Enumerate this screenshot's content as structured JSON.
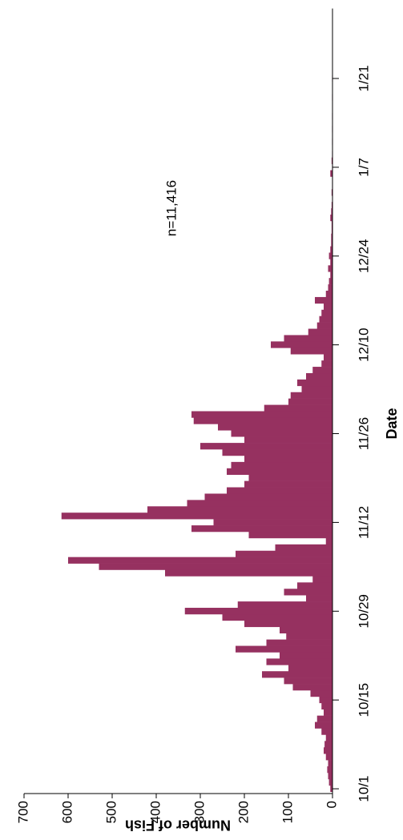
{
  "chart_data": {
    "type": "bar",
    "xlabel": "Date",
    "ylabel": "Number of Fish",
    "annotation": "n=11,416",
    "color": "#963160",
    "ylim": [
      0,
      700
    ],
    "yticks": [
      0,
      100,
      200,
      300,
      400,
      500,
      600,
      700
    ],
    "categories": [
      "10/1",
      null,
      null,
      null,
      null,
      null,
      null,
      null,
      null,
      null,
      null,
      null,
      null,
      null,
      "10/15",
      null,
      null,
      null,
      null,
      null,
      null,
      null,
      null,
      null,
      null,
      null,
      null,
      null,
      "10/29",
      null,
      null,
      null,
      null,
      null,
      null,
      null,
      null,
      null,
      null,
      null,
      null,
      null,
      "11/12",
      null,
      null,
      null,
      null,
      null,
      null,
      null,
      null,
      null,
      null,
      null,
      null,
      null,
      "11/26",
      null,
      null,
      null,
      null,
      null,
      null,
      null,
      null,
      null,
      null,
      null,
      null,
      null,
      "12/10",
      null,
      null,
      null,
      null,
      null,
      null,
      null,
      null,
      null,
      null,
      null,
      null,
      null,
      "12/24",
      null,
      null,
      null,
      null,
      null,
      null,
      null,
      null,
      null,
      null,
      null,
      null,
      null,
      "1/7",
      null,
      null,
      null,
      null,
      null,
      null,
      null,
      null,
      null,
      null,
      null,
      null,
      null,
      "1/21",
      null,
      null,
      null,
      null,
      null,
      null,
      null,
      null
    ],
    "values": [
      5,
      8,
      10,
      12,
      10,
      15,
      20,
      18,
      15,
      25,
      40,
      35,
      20,
      25,
      30,
      50,
      90,
      110,
      160,
      100,
      150,
      120,
      220,
      150,
      105,
      120,
      200,
      250,
      335,
      215,
      60,
      110,
      80,
      45,
      380,
      530,
      600,
      220,
      130,
      15,
      190,
      320,
      270,
      615,
      420,
      330,
      290,
      240,
      200,
      190,
      240,
      230,
      200,
      250,
      300,
      200,
      230,
      260,
      315,
      320,
      155,
      100,
      95,
      70,
      80,
      60,
      45,
      25,
      20,
      95,
      140,
      110,
      55,
      35,
      30,
      25,
      20,
      40,
      15,
      10,
      8,
      5,
      10,
      5,
      8,
      5,
      3,
      3,
      2,
      2,
      5,
      3,
      2,
      1,
      2,
      1,
      1,
      5,
      1,
      2,
      1,
      0,
      1,
      0,
      1,
      0,
      1,
      0,
      0,
      1,
      0,
      0,
      1,
      0,
      0,
      0,
      0,
      0,
      0,
      0,
      0
    ]
  }
}
